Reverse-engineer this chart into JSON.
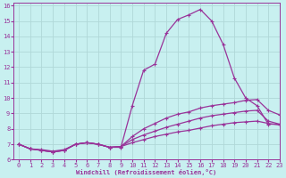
{
  "xlabel": "Windchill (Refroidissement éolien,°C)",
  "bg_color": "#c8f0f0",
  "line_color": "#993399",
  "grid_color": "#b0d8d8",
  "xlim": [
    -0.5,
    23
  ],
  "ylim": [
    6,
    16.2
  ],
  "xticks": [
    0,
    1,
    2,
    3,
    4,
    5,
    6,
    7,
    8,
    9,
    10,
    11,
    12,
    13,
    14,
    15,
    16,
    17,
    18,
    19,
    20,
    21,
    22,
    23
  ],
  "yticks": [
    6,
    7,
    8,
    9,
    10,
    11,
    12,
    13,
    14,
    15,
    16
  ],
  "line1_x": [
    0,
    1,
    2,
    3,
    4,
    5,
    6,
    7,
    8,
    9,
    10,
    11,
    12,
    13,
    14,
    15,
    16,
    17,
    18,
    19,
    20,
    21,
    22,
    23
  ],
  "line1_y": [
    7.0,
    6.7,
    6.6,
    6.5,
    6.6,
    7.0,
    7.1,
    7.0,
    6.8,
    6.8,
    9.5,
    11.8,
    12.2,
    14.2,
    15.1,
    15.4,
    15.75,
    15.0,
    13.5,
    11.3,
    10.0,
    9.5,
    8.3,
    8.3
  ],
  "line2_x": [
    0,
    1,
    2,
    3,
    4,
    5,
    6,
    7,
    8,
    9,
    10,
    11,
    12,
    13,
    14,
    15,
    16,
    17,
    18,
    19,
    20,
    21,
    22,
    23
  ],
  "line2_y": [
    7.0,
    6.7,
    6.6,
    6.5,
    6.6,
    7.0,
    7.1,
    7.0,
    6.8,
    6.85,
    7.5,
    8.0,
    8.35,
    8.7,
    8.95,
    9.1,
    9.35,
    9.5,
    9.6,
    9.7,
    9.85,
    9.9,
    9.2,
    8.9
  ],
  "line3_x": [
    0,
    1,
    2,
    3,
    4,
    5,
    6,
    7,
    8,
    9,
    10,
    11,
    12,
    13,
    14,
    15,
    16,
    17,
    18,
    19,
    20,
    21,
    22,
    23
  ],
  "line3_y": [
    7.0,
    6.7,
    6.6,
    6.5,
    6.6,
    7.0,
    7.1,
    7.0,
    6.8,
    6.85,
    7.3,
    7.6,
    7.85,
    8.1,
    8.3,
    8.5,
    8.7,
    8.85,
    8.95,
    9.05,
    9.15,
    9.2,
    8.5,
    8.3
  ],
  "line4_x": [
    0,
    1,
    2,
    3,
    4,
    5,
    6,
    7,
    8,
    9,
    10,
    11,
    12,
    13,
    14,
    15,
    16,
    17,
    18,
    19,
    20,
    21,
    22,
    23
  ],
  "line4_y": [
    7.0,
    6.7,
    6.65,
    6.55,
    6.65,
    7.0,
    7.1,
    7.0,
    6.8,
    6.85,
    7.1,
    7.3,
    7.5,
    7.65,
    7.8,
    7.9,
    8.05,
    8.2,
    8.3,
    8.4,
    8.45,
    8.5,
    8.35,
    8.25
  ]
}
